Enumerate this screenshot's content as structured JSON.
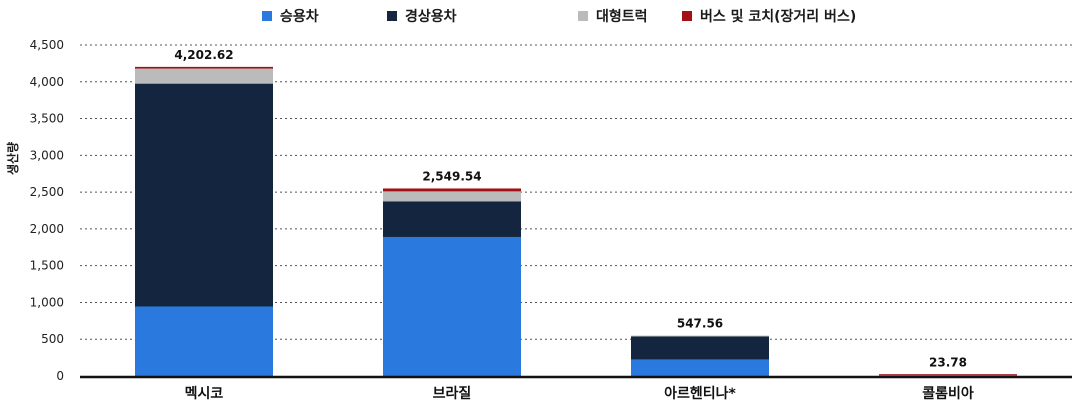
{
  "chart_data": {
    "type": "bar",
    "stacked": true,
    "categories": [
      "멕시코",
      "브라질",
      "아르헨티나*",
      "콜롬비아"
    ],
    "series": [
      {
        "name": "승용차",
        "color": "#2979de",
        "values": [
          945,
          1890,
          225,
          22
        ]
      },
      {
        "name": "경상용차",
        "color": "#14263f",
        "values": [
          3030,
          485,
          320,
          0
        ]
      },
      {
        "name": "대형트럭",
        "color": "#bbbbbb",
        "values": [
          205,
          135,
          2.56,
          1
        ]
      },
      {
        "name": "버스 및 코치(장거리 버스)",
        "color": "#a30f14",
        "values": [
          22.62,
          39.54,
          0,
          0.78
        ]
      }
    ],
    "totals": [
      4202.62,
      2549.54,
      547.56,
      23.78
    ],
    "total_labels": [
      "4,202.62",
      "2,549.54",
      "547.56",
      "23.78"
    ],
    "yticks": [
      0,
      500,
      1000,
      1500,
      2000,
      2500,
      3000,
      3500,
      4000,
      4500
    ],
    "ytick_labels": [
      "0",
      "500",
      "1,000",
      "1,500",
      "2,000",
      "2,500",
      "3,000",
      "3,500",
      "4,000",
      "4,500"
    ],
    "ylim": [
      0,
      4500
    ],
    "ylabel": "생산량",
    "xlabel": "",
    "title": "",
    "grid": true,
    "legend_position": "top"
  }
}
